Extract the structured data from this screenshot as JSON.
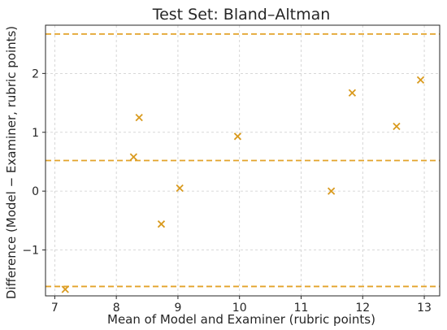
{
  "chart_data": {
    "type": "scatter",
    "title": "Test Set: Bland–Altman",
    "xlabel": "Mean of Model and Examiner (rubric points)",
    "ylabel": "Difference (Model − Examiner, rubric points)",
    "xlim": [
      6.85,
      13.25
    ],
    "ylim": [
      -1.78,
      2.82
    ],
    "xticks": [
      7,
      8,
      9,
      10,
      11,
      12,
      13
    ],
    "yticks": [
      -1,
      0,
      1,
      2
    ],
    "ytick_labels": [
      "−1",
      "0",
      "1",
      "2"
    ],
    "grid": true,
    "marker": "x",
    "point_color": "#d99a1e",
    "line_color": "#e3a32a",
    "reference_lines": [
      2.67,
      0.52,
      -1.62
    ],
    "points": [
      {
        "x": 7.17,
        "y": -1.67
      },
      {
        "x": 8.28,
        "y": 0.58
      },
      {
        "x": 8.37,
        "y": 1.25
      },
      {
        "x": 8.73,
        "y": -0.56
      },
      {
        "x": 9.03,
        "y": 0.05
      },
      {
        "x": 9.97,
        "y": 0.93
      },
      {
        "x": 11.49,
        "y": 0.0
      },
      {
        "x": 11.83,
        "y": 1.67
      },
      {
        "x": 12.55,
        "y": 1.1
      },
      {
        "x": 12.94,
        "y": 1.89
      }
    ]
  }
}
